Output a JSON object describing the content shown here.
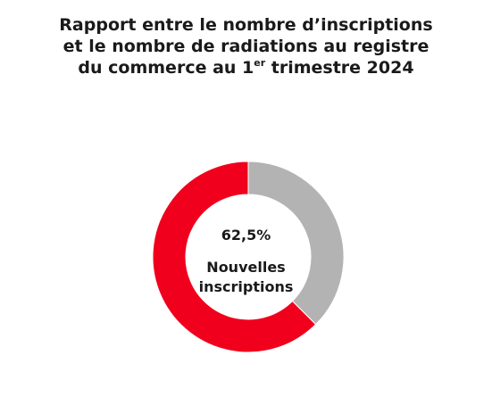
{
  "title": {
    "line1": "Rapport entre le nombre d’inscriptions",
    "line2": "et le nombre de radiations au registre",
    "line3_before": "du commerce au 1",
    "line3_sup": "er",
    "line3_after": " trimestre 2024"
  },
  "center": {
    "value": "62,5%",
    "label_line1": "Nouvelles",
    "label_line2": "inscriptions"
  },
  "chart_data": {
    "type": "pie",
    "variant": "donut",
    "title": "Rapport entre le nombre d’inscriptions et le nombre de radiations au registre du commerce au 1er trimestre 2024",
    "slices": [
      {
        "value": 62.5,
        "color": "#f0001c"
      },
      {
        "value": 37.5,
        "color": "#b3b3b3"
      }
    ]
  }
}
